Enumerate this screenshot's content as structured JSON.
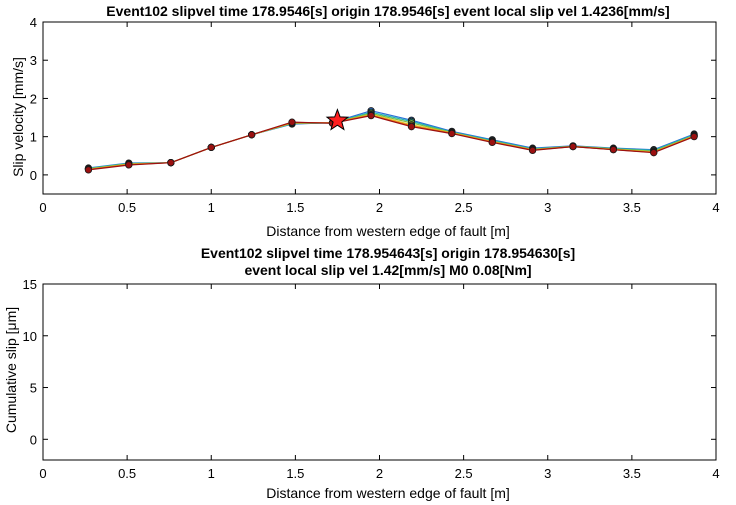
{
  "chart_data": [
    {
      "type": "line",
      "title": "Event102 slipvel time 178.9546[s] origin 178.9546[s] event local slip vel 1.4236[mm/s]",
      "xlabel": "Distance from western edge of fault [m]",
      "ylabel": "Slip velocity [mm/s]",
      "xlim": [
        0,
        4
      ],
      "ylim": [
        -0.5,
        4
      ],
      "xticks": [
        "0",
        "0.5",
        "1",
        "1.5",
        "2",
        "2.5",
        "3",
        "3.5",
        "4"
      ],
      "yticks": [
        "0",
        "1",
        "2",
        "3",
        "4"
      ],
      "grid": false,
      "x": [
        0.27,
        0.51,
        0.76,
        1.0,
        1.24,
        1.48,
        1.72,
        1.95,
        2.19,
        2.43,
        2.67,
        2.91,
        3.15,
        3.39,
        3.63,
        3.87
      ],
      "series": [
        {
          "color": "#2a6fd6",
          "values": [
            0.18,
            0.31,
            0.32,
            0.72,
            1.05,
            1.33,
            1.37,
            1.68,
            1.43,
            1.14,
            0.92,
            0.7,
            0.76,
            0.7,
            0.66,
            1.07
          ]
        },
        {
          "color": "#22b3b3",
          "values": [
            0.17,
            0.3,
            0.32,
            0.72,
            1.05,
            1.34,
            1.36,
            1.64,
            1.4,
            1.12,
            0.9,
            0.68,
            0.75,
            0.69,
            0.64,
            1.05
          ]
        },
        {
          "color": "#80c040",
          "values": [
            0.16,
            0.29,
            0.32,
            0.72,
            1.05,
            1.35,
            1.36,
            1.61,
            1.36,
            1.11,
            0.88,
            0.67,
            0.75,
            0.68,
            0.62,
            1.03
          ]
        },
        {
          "color": "#e8c020",
          "values": [
            0.15,
            0.28,
            0.32,
            0.72,
            1.05,
            1.36,
            1.36,
            1.58,
            1.31,
            1.1,
            0.87,
            0.66,
            0.74,
            0.67,
            0.6,
            1.02
          ]
        },
        {
          "color": "#e86018",
          "values": [
            0.14,
            0.27,
            0.32,
            0.72,
            1.05,
            1.37,
            1.36,
            1.56,
            1.28,
            1.09,
            0.86,
            0.65,
            0.74,
            0.66,
            0.59,
            1.01
          ]
        },
        {
          "color": "#9b1010",
          "values": [
            0.13,
            0.26,
            0.32,
            0.72,
            1.05,
            1.38,
            1.35,
            1.55,
            1.26,
            1.08,
            0.85,
            0.64,
            0.74,
            0.66,
            0.58,
            1.0
          ]
        }
      ],
      "marker": {
        "shape": "star",
        "x": 1.75,
        "y": 1.42,
        "color": "#ff2020"
      }
    },
    {
      "type": "line",
      "title": "Event102 slipvel time 178.954643[s] origin 178.954630[s]",
      "subtitle": "event local slip vel 1.42[mm/s] M0 0.08[Nm]",
      "xlabel": "Distance from western edge of fault [m]",
      "ylabel": "Cumulative slip [μm]",
      "xlim": [
        0,
        4
      ],
      "ylim": [
        -2,
        15
      ],
      "xticks": [
        "0",
        "0.5",
        "1",
        "1.5",
        "2",
        "2.5",
        "3",
        "3.5",
        "4"
      ],
      "yticks": [
        "0",
        "5",
        "10",
        "15"
      ],
      "grid": false,
      "series": []
    }
  ]
}
